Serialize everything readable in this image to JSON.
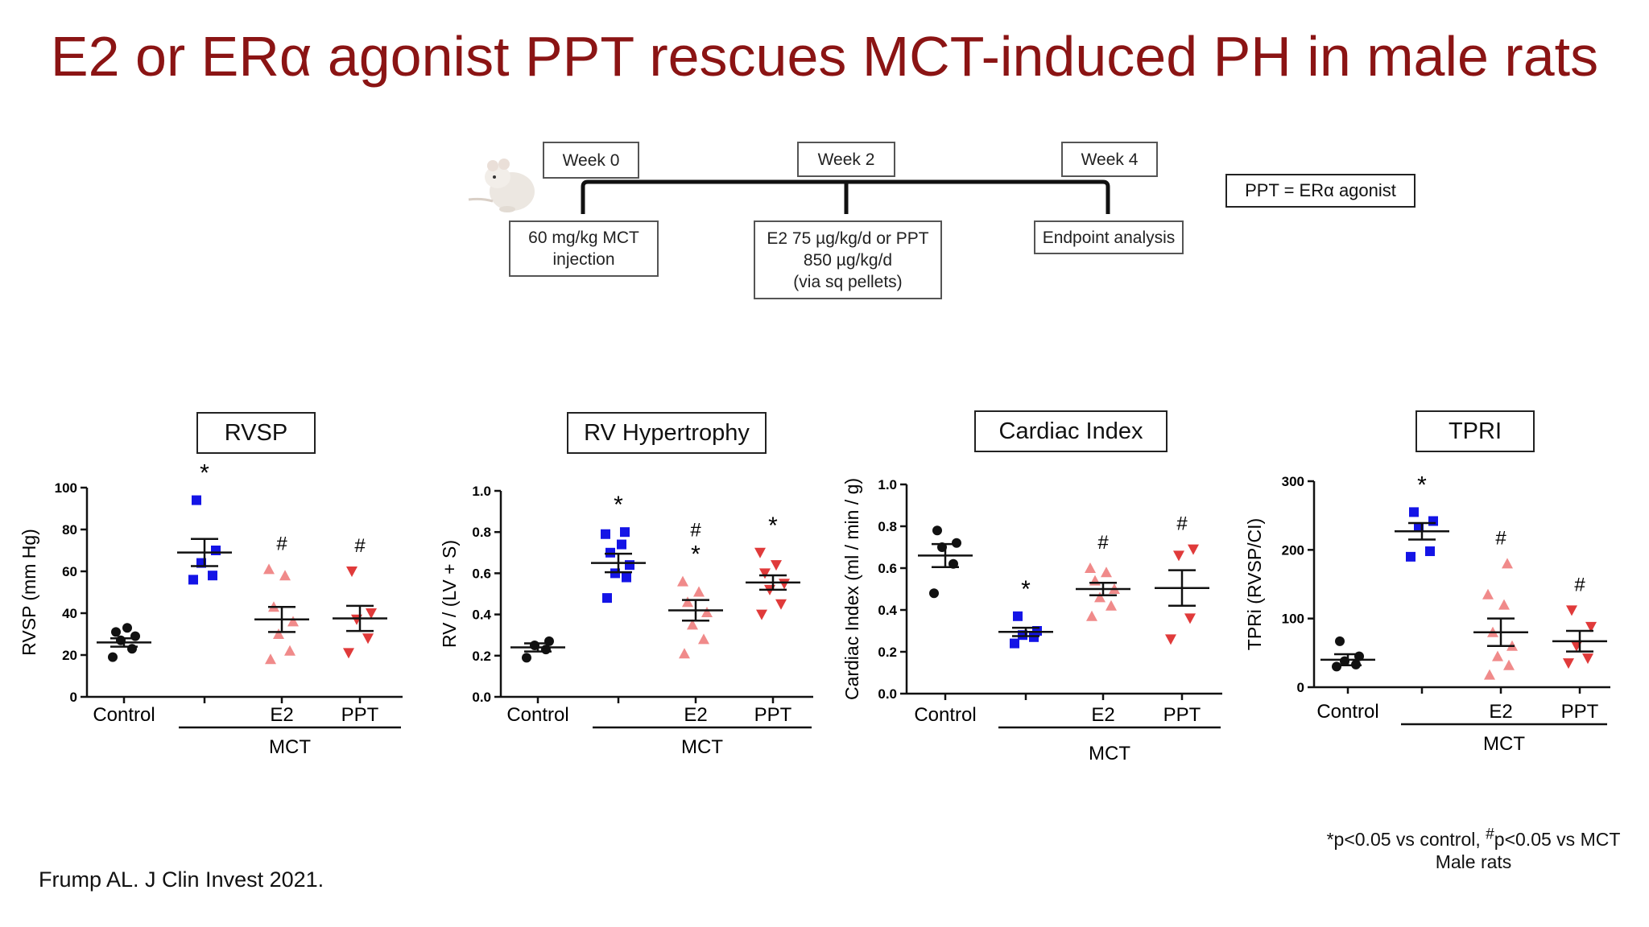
{
  "slide": {
    "title": "E2 or ERα agonist PPT rescues MCT-induced PH in male rats",
    "legend_box": "PPT = ERα agonist",
    "citation": "Frump AL. J Clin Invest 2021.",
    "significance_note_html": "*p<0.05 vs control, <sup>#</sup>p<0.05 vs MCT",
    "significance_note": "*p<0.05 vs control, #p<0.05 vs MCT",
    "subset_note": "Male rats"
  },
  "timeline": {
    "weeks": [
      "Week 0",
      "Week 2",
      "Week 4"
    ],
    "events": [
      {
        "lines": [
          "60 mg/kg MCT",
          "injection"
        ]
      },
      {
        "lines": [
          "E2 75 µg/kg/d or PPT",
          "850 µg/kg/d",
          "(via sq pellets)"
        ]
      },
      {
        "lines": [
          "Endpoint analysis"
        ]
      }
    ]
  },
  "colors": {
    "title": "#8b1414",
    "control": "#111111",
    "mct": "#1414e6",
    "e2": "#f08a8a",
    "ppt": "#e03a3a"
  },
  "chart_data": [
    {
      "type": "scatter",
      "panel_title": "RVSP",
      "ylabel": "RVSP (mm Hg)",
      "ylim": [
        0,
        100
      ],
      "yticks": [
        0,
        20,
        40,
        60,
        80,
        100
      ],
      "categories": [
        "Control",
        "",
        "E2",
        "PPT"
      ],
      "group_label": "MCT",
      "series": [
        {
          "color_key": "control",
          "marker": "circle",
          "points": [
            19,
            23,
            27,
            29,
            31,
            33
          ],
          "mean": 26,
          "sem": 2
        },
        {
          "color_key": "mct",
          "marker": "square",
          "points": [
            56,
            58,
            64,
            70,
            94
          ],
          "mean": 69,
          "sem": 6.5,
          "sig": "*"
        },
        {
          "color_key": "e2",
          "marker": "triangle-up",
          "points": [
            18,
            22,
            30,
            36,
            43,
            58,
            61
          ],
          "mean": 37,
          "sem": 6,
          "sig": "#"
        },
        {
          "color_key": "ppt",
          "marker": "triangle-down",
          "points": [
            21,
            28,
            37,
            40,
            60
          ],
          "mean": 37.5,
          "sem": 6,
          "sig": "#"
        }
      ]
    },
    {
      "type": "scatter",
      "panel_title": "RV Hypertrophy",
      "ylabel": "RV / (LV + S)",
      "ylim": [
        0,
        1.0
      ],
      "yticks": [
        0.0,
        0.2,
        0.4,
        0.6,
        0.8,
        1.0
      ],
      "tick_decimals": 1,
      "categories": [
        "Control",
        "",
        "E2",
        "PPT"
      ],
      "group_label": "MCT",
      "series": [
        {
          "color_key": "control",
          "marker": "circle",
          "points": [
            0.19,
            0.23,
            0.25,
            0.27
          ],
          "mean": 0.24,
          "sem": 0.02
        },
        {
          "color_key": "mct",
          "marker": "square",
          "points": [
            0.48,
            0.58,
            0.6,
            0.64,
            0.7,
            0.74,
            0.79,
            0.8
          ],
          "mean": 0.65,
          "sem": 0.045,
          "sig": "*"
        },
        {
          "color_key": "e2",
          "marker": "triangle-up",
          "points": [
            0.21,
            0.28,
            0.35,
            0.41,
            0.46,
            0.51,
            0.56
          ],
          "mean": 0.42,
          "sem": 0.05,
          "sig": "#*"
        },
        {
          "color_key": "ppt",
          "marker": "triangle-down",
          "points": [
            0.4,
            0.45,
            0.52,
            0.55,
            0.6,
            0.64,
            0.7
          ],
          "mean": 0.555,
          "sem": 0.035,
          "sig": "*"
        }
      ]
    },
    {
      "type": "scatter",
      "panel_title": "Cardiac Index",
      "ylabel": "Cardiac Index (ml / min / g)",
      "ylim": [
        0,
        1.0
      ],
      "yticks": [
        0.0,
        0.2,
        0.4,
        0.6,
        0.8,
        1.0
      ],
      "tick_decimals": 1,
      "categories": [
        "Control",
        "",
        "E2",
        "PPT"
      ],
      "group_label": "MCT",
      "series": [
        {
          "color_key": "control",
          "marker": "circle",
          "points": [
            0.48,
            0.62,
            0.7,
            0.72,
            0.78
          ],
          "mean": 0.66,
          "sem": 0.055
        },
        {
          "color_key": "mct",
          "marker": "square",
          "points": [
            0.24,
            0.27,
            0.28,
            0.3,
            0.37
          ],
          "mean": 0.295,
          "sem": 0.02,
          "sig": "*"
        },
        {
          "color_key": "e2",
          "marker": "triangle-up",
          "points": [
            0.37,
            0.42,
            0.46,
            0.5,
            0.54,
            0.58,
            0.6
          ],
          "mean": 0.5,
          "sem": 0.03,
          "sig": "#"
        },
        {
          "color_key": "ppt",
          "marker": "triangle-down",
          "points": [
            0.26,
            0.36,
            0.66,
            0.69
          ],
          "mean": 0.505,
          "sem": 0.085,
          "sig": "#"
        }
      ]
    },
    {
      "type": "scatter",
      "panel_title": "TPRI",
      "ylabel": "TPRi (RVSP/CI)",
      "ylim": [
        0,
        300
      ],
      "yticks": [
        0,
        100,
        200,
        300
      ],
      "categories": [
        "Control",
        "",
        "E2",
        "PPT"
      ],
      "group_label": "MCT",
      "series": [
        {
          "color_key": "control",
          "marker": "circle",
          "points": [
            30,
            33,
            38,
            45,
            67
          ],
          "mean": 40,
          "sem": 8
        },
        {
          "color_key": "mct",
          "marker": "square",
          "points": [
            190,
            198,
            233,
            242,
            255
          ],
          "mean": 227,
          "sem": 12,
          "sig": "*"
        },
        {
          "color_key": "e2",
          "marker": "triangle-up",
          "points": [
            18,
            32,
            45,
            60,
            80,
            120,
            135,
            180
          ],
          "mean": 80,
          "sem": 20,
          "sig": "#"
        },
        {
          "color_key": "ppt",
          "marker": "triangle-down",
          "points": [
            35,
            42,
            60,
            88,
            112
          ],
          "mean": 67,
          "sem": 15,
          "sig": "#"
        }
      ]
    }
  ]
}
